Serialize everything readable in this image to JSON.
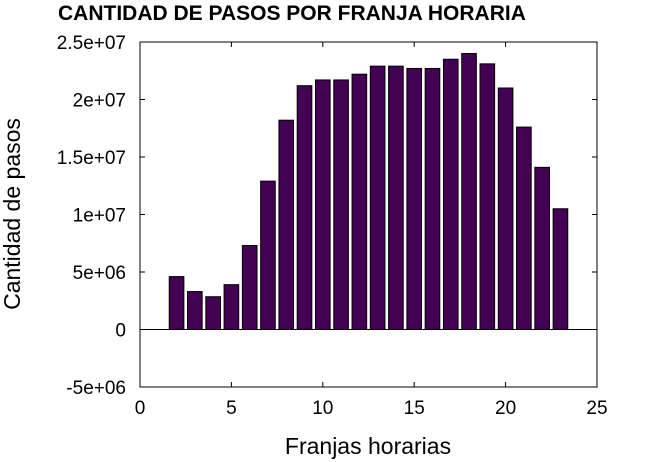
{
  "chart_data": {
    "type": "bar",
    "title": "CANTIDAD DE PASOS POR FRANJA HORARIA",
    "xlabel": "Franjas horarias",
    "ylabel": "Cantidad de pasos",
    "xlim": [
      0,
      25
    ],
    "ylim": [
      -5000000,
      25000000
    ],
    "x_ticks": [
      0,
      5,
      10,
      15,
      20,
      25
    ],
    "x_tick_labels": [
      "0",
      "5",
      "10",
      "15",
      "20",
      "25"
    ],
    "y_ticks": [
      -5000000,
      0,
      5000000,
      10000000,
      15000000,
      20000000,
      25000000
    ],
    "y_tick_labels": [
      "-5e+06",
      "0",
      "5e+06",
      "1e+07",
      "1.5e+07",
      "2e+07",
      "2.5e+07"
    ],
    "grid": false,
    "bar_color": "#440154",
    "x": [
      1,
      2,
      3,
      4,
      5,
      6,
      7,
      8,
      9,
      10,
      11,
      12,
      13,
      14,
      15,
      16,
      17,
      18,
      19,
      20,
      21,
      22,
      23
    ],
    "values": [
      0,
      4600000,
      3300000,
      2850000,
      3900000,
      7300000,
      12900000,
      18200000,
      21200000,
      21700000,
      21700000,
      22200000,
      22900000,
      22900000,
      22700000,
      22700000,
      23500000,
      24000000,
      23100000,
      21000000,
      17600000,
      14100000,
      10500000
    ]
  }
}
